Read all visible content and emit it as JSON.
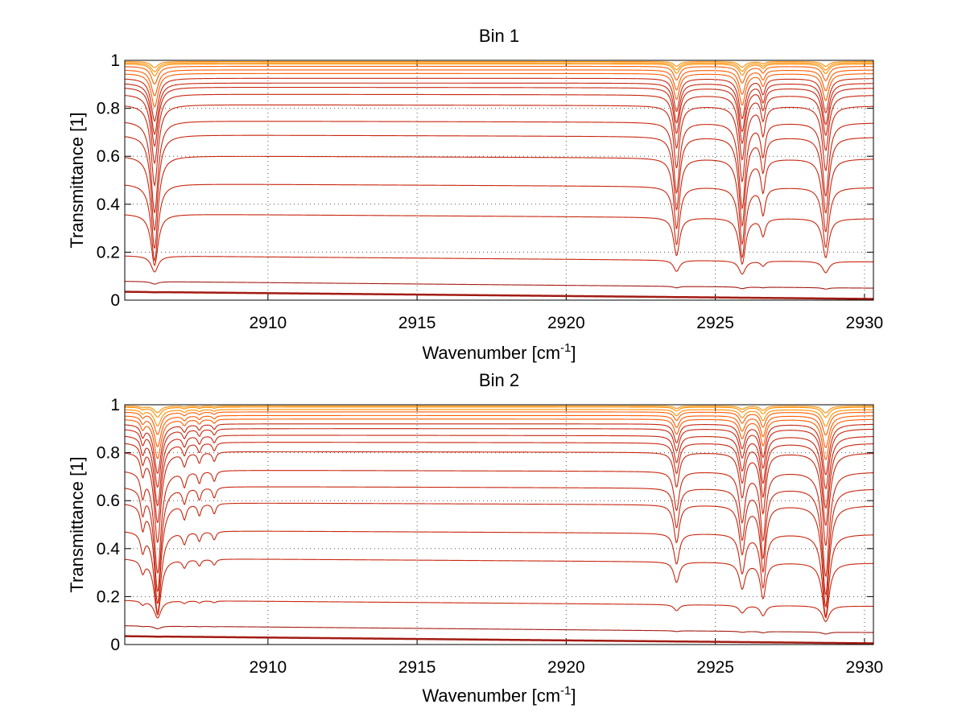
{
  "chart_data": [
    {
      "type": "line",
      "title": "Bin 1",
      "xlabel": "Wavenumber [cm",
      "xlabel_sup": "-1",
      "xlabel_end": "]",
      "ylabel": "Transmittance [1]",
      "xlim": [
        2905.2,
        2930.3
      ],
      "ylim": [
        0,
        1.0
      ],
      "xticks": [
        2910,
        2915,
        2920,
        2925,
        2930
      ],
      "xtick_labels": [
        "2910",
        "2915",
        "2920",
        "2925",
        "2930"
      ],
      "yticks": [
        0,
        0.2,
        0.4,
        0.6,
        0.8,
        1
      ],
      "ytick_labels": [
        "0",
        "0.2",
        "0.4",
        "0.6",
        "0.8",
        "1"
      ],
      "grid": "dotted",
      "colors": [
        "#a31b12",
        "#c8260f",
        "#ff5a00",
        "#ff8c00"
      ],
      "series_baselines": [
        0.005,
        0.05,
        0.16,
        0.34,
        0.47,
        0.59,
        0.68,
        0.74,
        0.81,
        0.855,
        0.885,
        0.905,
        0.925,
        0.945,
        0.96,
        0.975,
        0.985,
        0.99,
        0.995
      ],
      "absorption_lines": [
        {
          "center": 2906.2,
          "strength": 0.62,
          "width": 0.14
        },
        {
          "center": 2923.7,
          "strength": 0.48,
          "width": 0.12
        },
        {
          "center": 2925.9,
          "strength": 0.58,
          "width": 0.13
        },
        {
          "center": 2926.6,
          "strength": 0.22,
          "width": 0.09
        },
        {
          "center": 2928.7,
          "strength": 0.5,
          "width": 0.13
        }
      ]
    },
    {
      "type": "line",
      "title": "Bin 2",
      "xlabel": "Wavenumber [cm",
      "xlabel_sup": "-1",
      "xlabel_end": "]",
      "ylabel": "Transmittance [1]",
      "xlim": [
        2905.2,
        2930.3
      ],
      "ylim": [
        0,
        1.0
      ],
      "xticks": [
        2910,
        2915,
        2920,
        2925,
        2930
      ],
      "xtick_labels": [
        "2910",
        "2915",
        "2920",
        "2925",
        "2930"
      ],
      "yticks": [
        0,
        0.2,
        0.4,
        0.6,
        0.8,
        1
      ],
      "ytick_labels": [
        "0",
        "0.2",
        "0.4",
        "0.6",
        "0.8",
        "1"
      ],
      "grid": "dotted",
      "colors": [
        "#a31b12",
        "#c8260f",
        "#ff5a00",
        "#ff8c00"
      ],
      "series_baselines": [
        0.005,
        0.05,
        0.16,
        0.34,
        0.46,
        0.58,
        0.65,
        0.72,
        0.8,
        0.84,
        0.87,
        0.9,
        0.92,
        0.94,
        0.955,
        0.97,
        0.98,
        0.99,
        0.995
      ],
      "absorption_lines": [
        {
          "center": 2905.8,
          "strength": 0.15,
          "width": 0.08
        },
        {
          "center": 2906.3,
          "strength": 0.68,
          "width": 0.14
        },
        {
          "center": 2907.2,
          "strength": 0.1,
          "width": 0.08
        },
        {
          "center": 2907.7,
          "strength": 0.08,
          "width": 0.07
        },
        {
          "center": 2908.2,
          "strength": 0.07,
          "width": 0.07
        },
        {
          "center": 2923.7,
          "strength": 0.26,
          "width": 0.11
        },
        {
          "center": 2925.9,
          "strength": 0.33,
          "width": 0.12
        },
        {
          "center": 2926.6,
          "strength": 0.45,
          "width": 0.11
        },
        {
          "center": 2928.7,
          "strength": 0.7,
          "width": 0.14
        }
      ]
    }
  ]
}
